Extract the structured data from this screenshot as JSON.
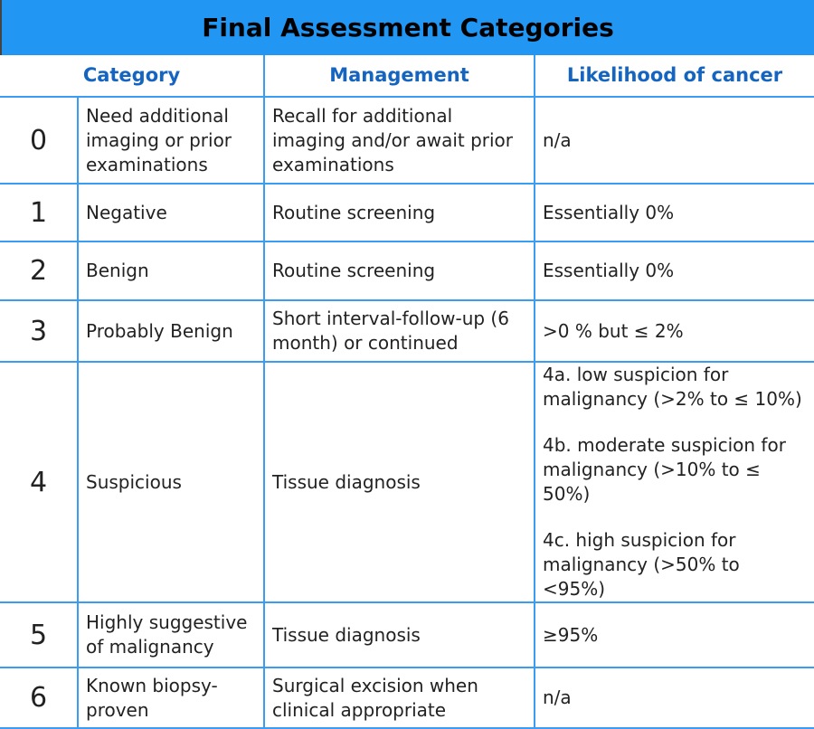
{
  "title": "Final Assessment Categories",
  "headers": {
    "category": "Category",
    "management": "Management",
    "likelihood": "Likelihood of cancer"
  },
  "accent_color": "#2196f3",
  "rows": [
    {
      "num": "0",
      "category": "Need additional imaging or prior examinations",
      "management": "Recall for additional imaging and/or await prior examinations",
      "likelihood": [
        "n/a"
      ]
    },
    {
      "num": "1",
      "category": "Negative",
      "management": "Routine screening",
      "likelihood": [
        "Essentially 0%"
      ]
    },
    {
      "num": "2",
      "category": "Benign",
      "management": "Routine screening",
      "likelihood": [
        "Essentially 0%"
      ]
    },
    {
      "num": "3",
      "category": "Probably Benign",
      "management": "Short interval-follow-up (6 month) or continued",
      "likelihood": [
        ">0 % but ≤ 2%"
      ]
    },
    {
      "num": "4",
      "category": "Suspicious",
      "management": "Tissue diagnosis",
      "likelihood": [
        "4a. low suspicion for malignancy (>2% to ≤ 10%)",
        "4b. moderate suspicion for malignancy (>10% to ≤ 50%)",
        "4c. high suspicion for malignancy (>50% to <95%)"
      ]
    },
    {
      "num": "5",
      "category": "Highly suggestive of malignancy",
      "management": "Tissue diagnosis",
      "likelihood": [
        "≥95%"
      ]
    },
    {
      "num": "6",
      "category": "Known biopsy-proven",
      "management": "Surgical excision when clinical appropriate",
      "likelihood": [
        "n/a"
      ]
    }
  ]
}
